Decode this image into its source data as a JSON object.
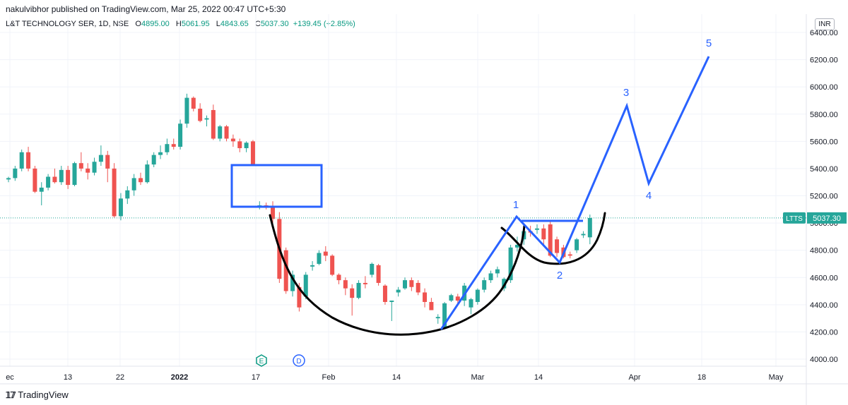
{
  "header": {
    "publisher": "nakulvibhor published on TradingView.com, Mar 25, 2022 00:47 UTC+5:30",
    "symbol": "L&T TECHNOLOGY SER, 1D, NSE",
    "open_label": "O",
    "open": "4895.00",
    "high_label": "H",
    "high": "5061.95",
    "low_label": "L",
    "low": "4843.65",
    "close_label": "C",
    "close": "5037.30",
    "change": "+139.45 (+2.85%)",
    "currency": "INR"
  },
  "footer": {
    "logo": "TradingView"
  },
  "colors": {
    "up": "#26a69a",
    "down": "#ef5350",
    "drawing": "#2962ff",
    "cup": "#000000"
  },
  "chart_data": {
    "type": "candlestick",
    "ylim": [
      3940,
      6480
    ],
    "y_ticks": [
      "4000.00",
      "4200.00",
      "4400.00",
      "4600.00",
      "4800.00",
      "5000.00",
      "5200.00",
      "5400.00",
      "5600.00",
      "5800.00",
      "6000.00",
      "6200.00",
      "6400.00"
    ],
    "x_ticks": [
      "ec",
      "13",
      "22",
      "2022",
      "17",
      "Feb",
      "14",
      "Mar",
      "14",
      "Apr",
      "18",
      "May"
    ],
    "last_price_tag": {
      "symbol": "LTTS",
      "value": "5037.30"
    },
    "events": [
      {
        "label": "E"
      },
      {
        "label": "D"
      }
    ],
    "candles": [
      [
        5320,
        5340,
        5300,
        5330
      ],
      [
        5330,
        5420,
        5310,
        5400
      ],
      [
        5400,
        5540,
        5380,
        5520
      ],
      [
        5520,
        5560,
        5380,
        5400
      ],
      [
        5400,
        5420,
        5220,
        5230
      ],
      [
        5230,
        5300,
        5130,
        5260
      ],
      [
        5260,
        5360,
        5240,
        5340
      ],
      [
        5340,
        5400,
        5290,
        5300
      ],
      [
        5300,
        5420,
        5280,
        5390
      ],
      [
        5390,
        5420,
        5250,
        5280
      ],
      [
        5280,
        5450,
        5270,
        5440
      ],
      [
        5440,
        5520,
        5380,
        5400
      ],
      [
        5400,
        5440,
        5320,
        5370
      ],
      [
        5370,
        5480,
        5350,
        5450
      ],
      [
        5450,
        5570,
        5420,
        5500
      ],
      [
        5500,
        5530,
        5300,
        5400
      ],
      [
        5400,
        5440,
        5040,
        5050
      ],
      [
        5050,
        5220,
        5020,
        5180
      ],
      [
        5180,
        5270,
        5140,
        5240
      ],
      [
        5240,
        5360,
        5200,
        5330
      ],
      [
        5330,
        5370,
        5280,
        5300
      ],
      [
        5300,
        5460,
        5290,
        5430
      ],
      [
        5430,
        5520,
        5410,
        5500
      ],
      [
        5500,
        5570,
        5470,
        5520
      ],
      [
        5520,
        5620,
        5500,
        5580
      ],
      [
        5580,
        5620,
        5540,
        5560
      ],
      [
        5560,
        5760,
        5540,
        5730
      ],
      [
        5730,
        5950,
        5700,
        5920
      ],
      [
        5920,
        5930,
        5820,
        5840
      ],
      [
        5840,
        5880,
        5740,
        5750
      ],
      [
        5760,
        5790,
        5710,
        5770
      ],
      [
        5830,
        5870,
        5610,
        5620
      ],
      [
        5620,
        5720,
        5600,
        5710
      ],
      [
        5710,
        5720,
        5600,
        5620
      ],
      [
        5620,
        5650,
        5560,
        5600
      ],
      [
        5600,
        5620,
        5520,
        5550
      ],
      [
        5550,
        5600,
        5520,
        5590
      ],
      [
        5600,
        5610,
        5420,
        5430
      ],
      [
        5120,
        5160,
        5100,
        5130
      ],
      [
        5130,
        5150,
        5100,
        5120
      ],
      [
        5120,
        5160,
        5000,
        5030
      ],
      [
        5030,
        5080,
        4560,
        4590
      ],
      [
        4800,
        4820,
        4480,
        4500
      ],
      [
        4500,
        4650,
        4460,
        4620
      ],
      [
        4530,
        4560,
        4350,
        4380
      ],
      [
        4460,
        4640,
        4440,
        4620
      ],
      [
        4680,
        4720,
        4650,
        4690
      ],
      [
        4700,
        4800,
        4690,
        4780
      ],
      [
        4790,
        4830,
        4720,
        4760
      ],
      [
        4760,
        4770,
        4610,
        4620
      ],
      [
        4620,
        4630,
        4550,
        4580
      ],
      [
        4580,
        4600,
        4470,
        4520
      ],
      [
        4520,
        4550,
        4320,
        4450
      ],
      [
        4450,
        4580,
        4440,
        4560
      ],
      [
        4560,
        4610,
        4520,
        4550
      ],
      [
        4620,
        4710,
        4600,
        4700
      ],
      [
        4690,
        4700,
        4540,
        4560
      ],
      [
        4540,
        4550,
        4400,
        4420
      ],
      [
        4420,
        4430,
        4280,
        4430
      ],
      [
        4490,
        4530,
        4460,
        4510
      ],
      [
        4520,
        4600,
        4510,
        4580
      ],
      [
        4580,
        4600,
        4500,
        4530
      ],
      [
        4560,
        4580,
        4470,
        4490
      ],
      [
        4490,
        4520,
        4380,
        4420
      ],
      [
        4420,
        4450,
        4360,
        4360
      ],
      [
        4300,
        4330,
        4260,
        4310
      ],
      [
        4230,
        4420,
        4220,
        4410
      ],
      [
        4430,
        4480,
        4420,
        4470
      ],
      [
        4460,
        4480,
        4410,
        4430
      ],
      [
        4430,
        4560,
        4390,
        4540
      ],
      [
        4380,
        4450,
        4330,
        4440
      ],
      [
        4420,
        4520,
        4400,
        4510
      ],
      [
        4510,
        4600,
        4490,
        4580
      ],
      [
        4580,
        4650,
        4560,
        4630
      ],
      [
        4630,
        4680,
        4600,
        4660
      ],
      [
        4520,
        4600,
        4500,
        4590
      ],
      [
        4580,
        4840,
        4560,
        4820
      ],
      [
        4820,
        4900,
        4790,
        4840
      ],
      [
        4880,
        4950,
        4840,
        4940
      ],
      [
        4940,
        4980,
        4900,
        4930
      ],
      [
        4950,
        4990,
        4920,
        4960
      ],
      [
        4960,
        4990,
        4840,
        4880
      ],
      [
        4990,
        5020,
        4750,
        4760
      ],
      [
        4880,
        4900,
        4750,
        4780
      ],
      [
        4820,
        4840,
        4740,
        4750
      ],
      [
        4770,
        4790,
        4740,
        4760
      ],
      [
        4800,
        4890,
        4780,
        4880
      ],
      [
        4910,
        4940,
        4890,
        4920
      ],
      [
        4895,
        5062,
        4844,
        5037
      ]
    ],
    "wave_labels": [
      "1",
      "2",
      "3",
      "4",
      "5"
    ]
  }
}
